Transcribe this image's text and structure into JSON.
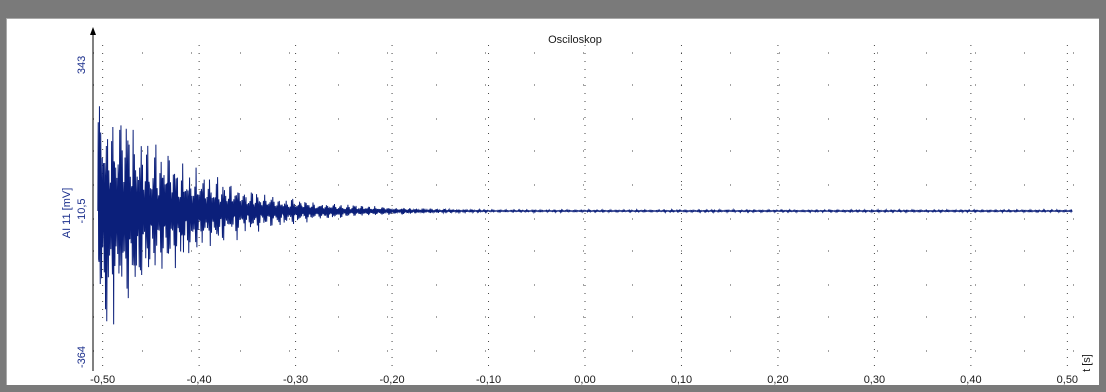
{
  "chart_data": {
    "type": "line",
    "title": "Osciloskop",
    "xlabel": "t [s]",
    "ylabel": "AI 11 [mV]",
    "xlim": [
      -0.51,
      0.51
    ],
    "ylim": [
      -364,
      343
    ],
    "x_ticks": [
      "-0,50",
      "-0,40",
      "-0,30",
      "-0,20",
      "-0,10",
      "0,00",
      "0,10",
      "0,20",
      "0,30",
      "0,40",
      "0,50"
    ],
    "x_tick_values": [
      -0.5,
      -0.4,
      -0.3,
      -0.2,
      -0.1,
      0.0,
      0.1,
      0.2,
      0.3,
      0.4,
      0.5
    ],
    "y_ticks": [
      "343",
      "-10,5",
      "-364"
    ],
    "y_tick_values": [
      343,
      -10.5,
      -364
    ],
    "grid": true,
    "series": [
      {
        "color": "#0b1f7a",
        "x": [
          -0.5,
          -0.48,
          -0.46,
          -0.44,
          -0.42,
          -0.4,
          -0.38,
          -0.36,
          -0.34,
          -0.32,
          -0.3,
          -0.28,
          -0.26,
          -0.24,
          -0.22,
          -0.2,
          -0.18,
          -0.16,
          -0.14,
          -0.12,
          -0.1,
          0.0,
          0.1,
          0.2,
          0.3,
          0.4,
          0.5
        ],
        "envelope": [
          350,
          300,
          235,
          185,
          150,
          120,
          95,
          75,
          58,
          45,
          36,
          28,
          22,
          18,
          14,
          11,
          8,
          6,
          5,
          4,
          3,
          3,
          3,
          3,
          3,
          3,
          3
        ],
        "center": -10.5
      }
    ]
  },
  "colors": {
    "trace": "#0b1f7a",
    "grid": "#444444",
    "background": "#ffffff",
    "frame": "#7a7a7a"
  }
}
